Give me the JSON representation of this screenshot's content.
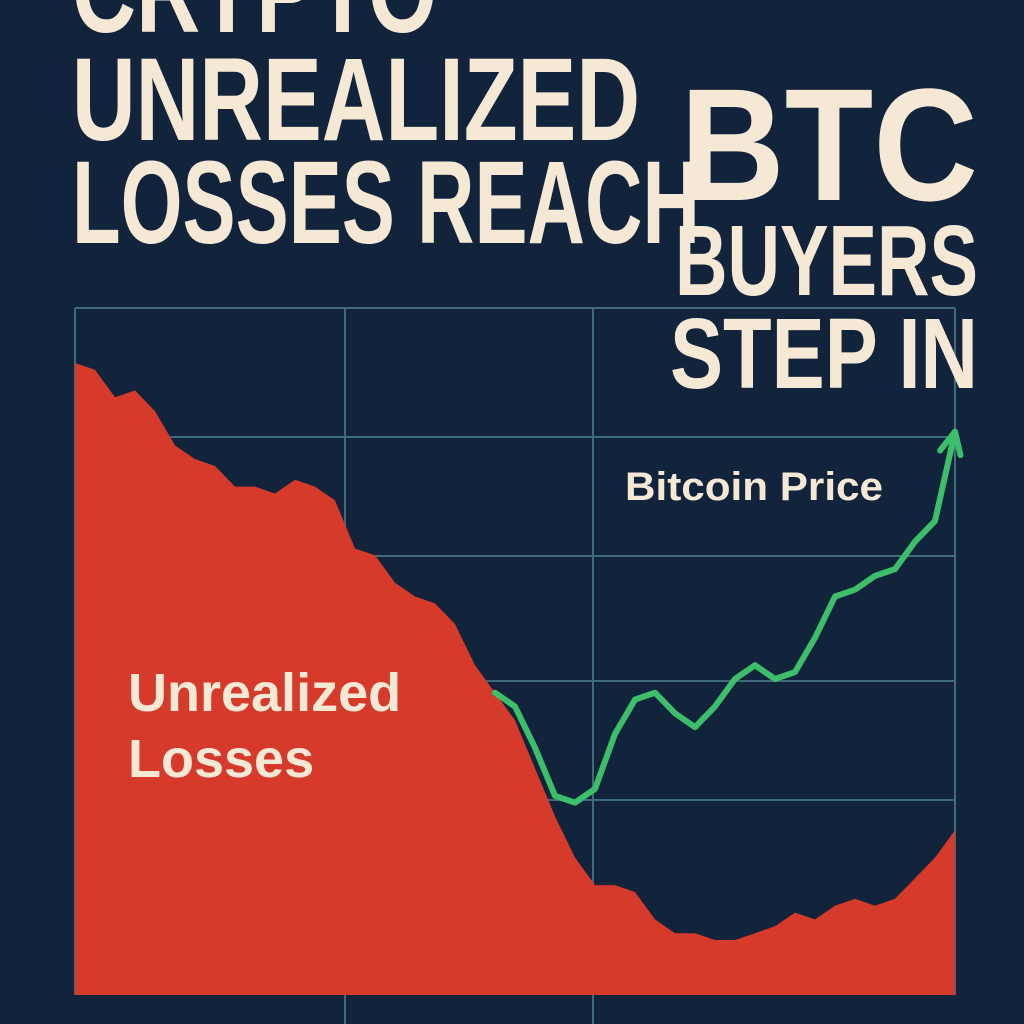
{
  "chart_data": {
    "type": "area",
    "title": [
      "CRYPTO",
      "UNREALIZED",
      "LOSSES REACH"
    ],
    "subtitle": [
      "BTC",
      "BUYERS",
      "STEP IN"
    ],
    "ylim": [
      0,
      100
    ],
    "grid": true,
    "series": [
      {
        "name": "Unrealized Losses",
        "color": "#d63a2a",
        "values": [
          92,
          91,
          87,
          88,
          85,
          80,
          78,
          77,
          74,
          74,
          73,
          75,
          74,
          72,
          65,
          64,
          60,
          58,
          57,
          54,
          48,
          44,
          40,
          33,
          26,
          20,
          16,
          16,
          15,
          11,
          9,
          9,
          8,
          8,
          9,
          10,
          12,
          11,
          13,
          14,
          13,
          14,
          17,
          20,
          24
        ]
      },
      {
        "name": "Bitcoin Price",
        "color": "#3dbf6a",
        "values": [
          null,
          null,
          null,
          null,
          null,
          null,
          null,
          null,
          null,
          null,
          null,
          null,
          null,
          null,
          null,
          null,
          null,
          null,
          null,
          null,
          null,
          44,
          42,
          36,
          29,
          28,
          30,
          38,
          43,
          44,
          41,
          39,
          42,
          46,
          48,
          46,
          47,
          52,
          58,
          59,
          61,
          62,
          66,
          69,
          82
        ]
      }
    ]
  }
}
